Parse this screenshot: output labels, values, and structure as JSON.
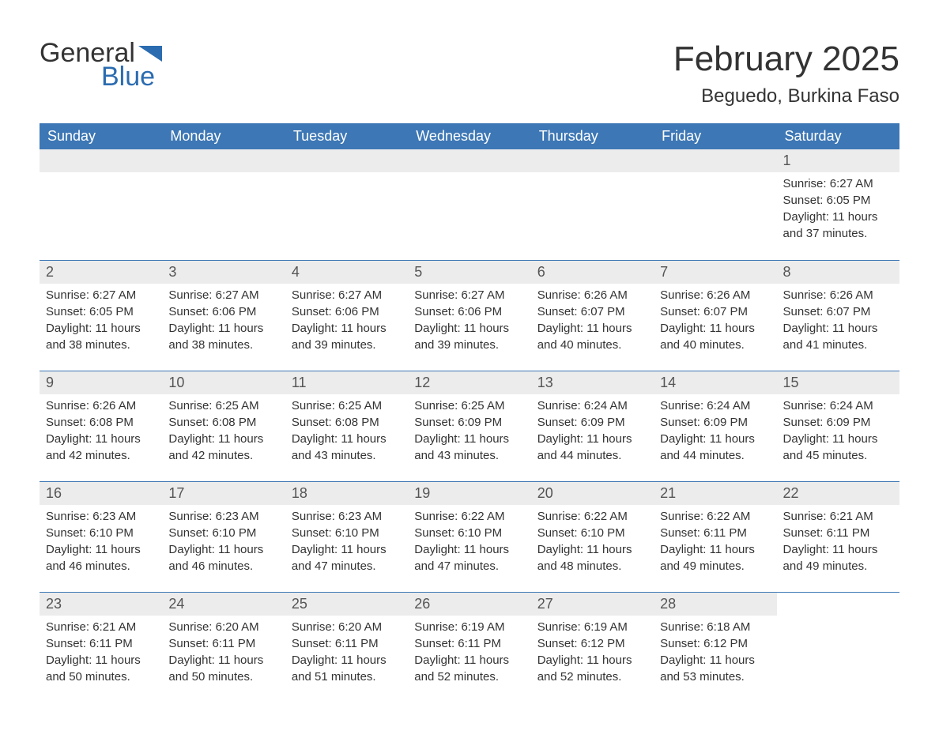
{
  "logo": {
    "word1": "General",
    "word2": "Blue"
  },
  "title": "February 2025",
  "location": "Beguedo, Burkina Faso",
  "colors": {
    "header_bg": "#3d77b5",
    "header_text": "#ffffff",
    "daynum_bg": "#ececec",
    "border": "#3d77b5",
    "text": "#333333",
    "brand_blue": "#2b6cb0"
  },
  "weekdays": [
    "Sunday",
    "Monday",
    "Tuesday",
    "Wednesday",
    "Thursday",
    "Friday",
    "Saturday"
  ],
  "weeks": [
    [
      null,
      null,
      null,
      null,
      null,
      null,
      {
        "n": "1",
        "sunrise": "Sunrise: 6:27 AM",
        "sunset": "Sunset: 6:05 PM",
        "daylight": "Daylight: 11 hours and 37 minutes."
      }
    ],
    [
      {
        "n": "2",
        "sunrise": "Sunrise: 6:27 AM",
        "sunset": "Sunset: 6:05 PM",
        "daylight": "Daylight: 11 hours and 38 minutes."
      },
      {
        "n": "3",
        "sunrise": "Sunrise: 6:27 AM",
        "sunset": "Sunset: 6:06 PM",
        "daylight": "Daylight: 11 hours and 38 minutes."
      },
      {
        "n": "4",
        "sunrise": "Sunrise: 6:27 AM",
        "sunset": "Sunset: 6:06 PM",
        "daylight": "Daylight: 11 hours and 39 minutes."
      },
      {
        "n": "5",
        "sunrise": "Sunrise: 6:27 AM",
        "sunset": "Sunset: 6:06 PM",
        "daylight": "Daylight: 11 hours and 39 minutes."
      },
      {
        "n": "6",
        "sunrise": "Sunrise: 6:26 AM",
        "sunset": "Sunset: 6:07 PM",
        "daylight": "Daylight: 11 hours and 40 minutes."
      },
      {
        "n": "7",
        "sunrise": "Sunrise: 6:26 AM",
        "sunset": "Sunset: 6:07 PM",
        "daylight": "Daylight: 11 hours and 40 minutes."
      },
      {
        "n": "8",
        "sunrise": "Sunrise: 6:26 AM",
        "sunset": "Sunset: 6:07 PM",
        "daylight": "Daylight: 11 hours and 41 minutes."
      }
    ],
    [
      {
        "n": "9",
        "sunrise": "Sunrise: 6:26 AM",
        "sunset": "Sunset: 6:08 PM",
        "daylight": "Daylight: 11 hours and 42 minutes."
      },
      {
        "n": "10",
        "sunrise": "Sunrise: 6:25 AM",
        "sunset": "Sunset: 6:08 PM",
        "daylight": "Daylight: 11 hours and 42 minutes."
      },
      {
        "n": "11",
        "sunrise": "Sunrise: 6:25 AM",
        "sunset": "Sunset: 6:08 PM",
        "daylight": "Daylight: 11 hours and 43 minutes."
      },
      {
        "n": "12",
        "sunrise": "Sunrise: 6:25 AM",
        "sunset": "Sunset: 6:09 PM",
        "daylight": "Daylight: 11 hours and 43 minutes."
      },
      {
        "n": "13",
        "sunrise": "Sunrise: 6:24 AM",
        "sunset": "Sunset: 6:09 PM",
        "daylight": "Daylight: 11 hours and 44 minutes."
      },
      {
        "n": "14",
        "sunrise": "Sunrise: 6:24 AM",
        "sunset": "Sunset: 6:09 PM",
        "daylight": "Daylight: 11 hours and 44 minutes."
      },
      {
        "n": "15",
        "sunrise": "Sunrise: 6:24 AM",
        "sunset": "Sunset: 6:09 PM",
        "daylight": "Daylight: 11 hours and 45 minutes."
      }
    ],
    [
      {
        "n": "16",
        "sunrise": "Sunrise: 6:23 AM",
        "sunset": "Sunset: 6:10 PM",
        "daylight": "Daylight: 11 hours and 46 minutes."
      },
      {
        "n": "17",
        "sunrise": "Sunrise: 6:23 AM",
        "sunset": "Sunset: 6:10 PM",
        "daylight": "Daylight: 11 hours and 46 minutes."
      },
      {
        "n": "18",
        "sunrise": "Sunrise: 6:23 AM",
        "sunset": "Sunset: 6:10 PM",
        "daylight": "Daylight: 11 hours and 47 minutes."
      },
      {
        "n": "19",
        "sunrise": "Sunrise: 6:22 AM",
        "sunset": "Sunset: 6:10 PM",
        "daylight": "Daylight: 11 hours and 47 minutes."
      },
      {
        "n": "20",
        "sunrise": "Sunrise: 6:22 AM",
        "sunset": "Sunset: 6:10 PM",
        "daylight": "Daylight: 11 hours and 48 minutes."
      },
      {
        "n": "21",
        "sunrise": "Sunrise: 6:22 AM",
        "sunset": "Sunset: 6:11 PM",
        "daylight": "Daylight: 11 hours and 49 minutes."
      },
      {
        "n": "22",
        "sunrise": "Sunrise: 6:21 AM",
        "sunset": "Sunset: 6:11 PM",
        "daylight": "Daylight: 11 hours and 49 minutes."
      }
    ],
    [
      {
        "n": "23",
        "sunrise": "Sunrise: 6:21 AM",
        "sunset": "Sunset: 6:11 PM",
        "daylight": "Daylight: 11 hours and 50 minutes."
      },
      {
        "n": "24",
        "sunrise": "Sunrise: 6:20 AM",
        "sunset": "Sunset: 6:11 PM",
        "daylight": "Daylight: 11 hours and 50 minutes."
      },
      {
        "n": "25",
        "sunrise": "Sunrise: 6:20 AM",
        "sunset": "Sunset: 6:11 PM",
        "daylight": "Daylight: 11 hours and 51 minutes."
      },
      {
        "n": "26",
        "sunrise": "Sunrise: 6:19 AM",
        "sunset": "Sunset: 6:11 PM",
        "daylight": "Daylight: 11 hours and 52 minutes."
      },
      {
        "n": "27",
        "sunrise": "Sunrise: 6:19 AM",
        "sunset": "Sunset: 6:12 PM",
        "daylight": "Daylight: 11 hours and 52 minutes."
      },
      {
        "n": "28",
        "sunrise": "Sunrise: 6:18 AM",
        "sunset": "Sunset: 6:12 PM",
        "daylight": "Daylight: 11 hours and 53 minutes."
      },
      null
    ]
  ]
}
